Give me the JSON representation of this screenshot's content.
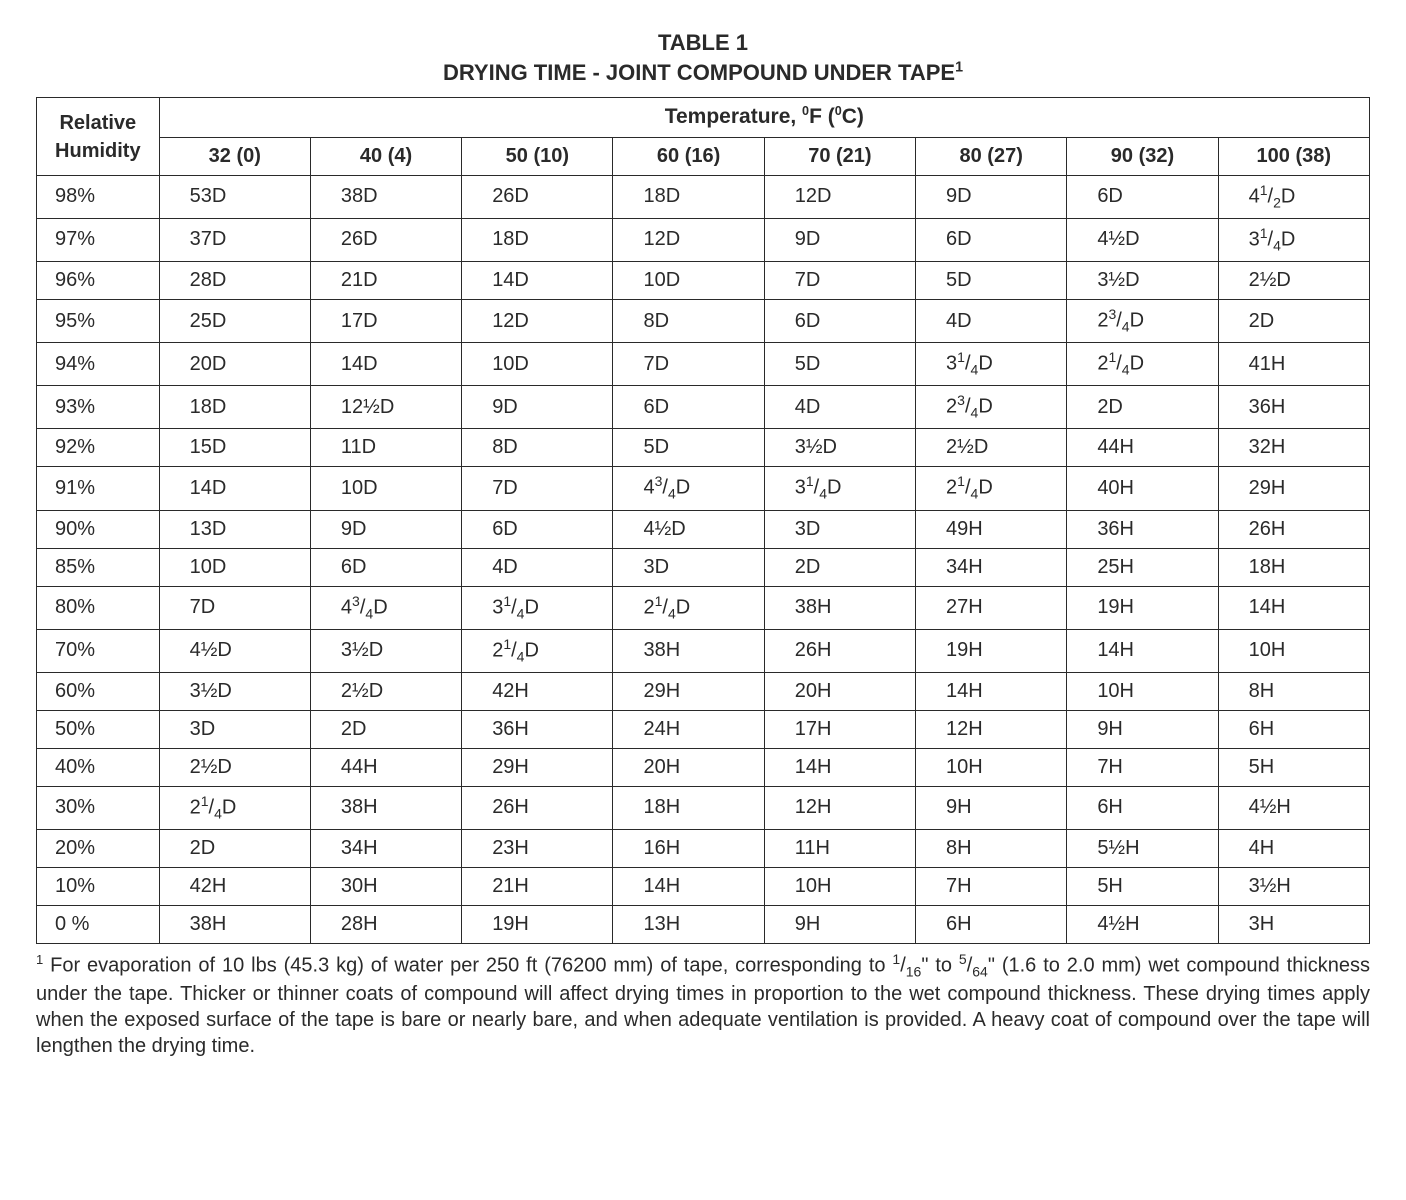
{
  "title": {
    "line1": "TABLE 1",
    "line2_pre": "DRYING TIME - JOINT COMPOUND UNDER TAPE",
    "line2_sup": "1"
  },
  "header": {
    "rh_label_1": "Relative",
    "rh_label_2": "Humidity",
    "temp_label_pre": "Temperature, ",
    "temp_label_sup1": "0",
    "temp_label_mid": "F (",
    "temp_label_sup2": "0",
    "temp_label_post": "C)",
    "temp_cols": [
      "32 (0)",
      "40 (4)",
      "50 (10)",
      "60 (16)",
      "70 (21)",
      "80 (27)",
      "90 (32)",
      "100 (38)"
    ]
  },
  "rows": [
    {
      "rh": "98%",
      "cells": [
        {
          "t": "53D"
        },
        {
          "t": "38D"
        },
        {
          "t": "26D"
        },
        {
          "t": "18D"
        },
        {
          "t": "12D"
        },
        {
          "t": "9D"
        },
        {
          "t": "6D"
        },
        {
          "p": "4",
          "n": "1",
          "d": "2",
          "s": "D"
        }
      ]
    },
    {
      "rh": "97%",
      "cells": [
        {
          "t": "37D"
        },
        {
          "t": "26D"
        },
        {
          "t": "18D"
        },
        {
          "t": "12D"
        },
        {
          "t": "9D"
        },
        {
          "t": "6D"
        },
        {
          "t": "4½D"
        },
        {
          "p": "3",
          "n": "1",
          "d": "4",
          "s": "D"
        }
      ]
    },
    {
      "rh": "96%",
      "cells": [
        {
          "t": "28D"
        },
        {
          "t": "21D"
        },
        {
          "t": "14D"
        },
        {
          "t": "10D"
        },
        {
          "t": "7D"
        },
        {
          "t": "5D"
        },
        {
          "t": "3½D"
        },
        {
          "t": "2½D"
        }
      ]
    },
    {
      "rh": "95%",
      "cells": [
        {
          "t": "25D"
        },
        {
          "t": "17D"
        },
        {
          "t": "12D"
        },
        {
          "t": "8D"
        },
        {
          "t": "6D"
        },
        {
          "t": "4D"
        },
        {
          "p": "2",
          "n": "3",
          "d": "4",
          "s": "D"
        },
        {
          "t": "2D"
        }
      ]
    },
    {
      "rh": "94%",
      "cells": [
        {
          "t": "20D"
        },
        {
          "t": "14D"
        },
        {
          "t": "10D"
        },
        {
          "t": "7D"
        },
        {
          "t": "5D"
        },
        {
          "p": "3",
          "n": "1",
          "d": "4",
          "s": "D"
        },
        {
          "p": "2",
          "n": "1",
          "d": "4",
          "s": "D"
        },
        {
          "t": "41H"
        }
      ]
    },
    {
      "rh": "93%",
      "cells": [
        {
          "t": "18D"
        },
        {
          "t": "12½D"
        },
        {
          "t": "9D"
        },
        {
          "t": "6D"
        },
        {
          "t": "4D"
        },
        {
          "p": "2",
          "n": "3",
          "d": "4",
          "s": "D"
        },
        {
          "t": "2D"
        },
        {
          "t": "36H"
        }
      ]
    },
    {
      "rh": "92%",
      "cells": [
        {
          "t": "15D"
        },
        {
          "t": "11D"
        },
        {
          "t": "8D"
        },
        {
          "t": "5D"
        },
        {
          "t": "3½D"
        },
        {
          "t": "2½D"
        },
        {
          "t": "44H"
        },
        {
          "t": "32H"
        }
      ]
    },
    {
      "rh": "91%",
      "cells": [
        {
          "t": "14D"
        },
        {
          "t": "10D"
        },
        {
          "t": "7D"
        },
        {
          "p": "4",
          "n": "3",
          "d": "4",
          "s": "D"
        },
        {
          "p": "3",
          "n": "1",
          "d": "4",
          "s": "D"
        },
        {
          "p": "2",
          "n": "1",
          "d": "4",
          "s": "D"
        },
        {
          "t": "40H"
        },
        {
          "t": "29H"
        }
      ]
    },
    {
      "rh": "90%",
      "cells": [
        {
          "t": "13D"
        },
        {
          "t": "9D"
        },
        {
          "t": "6D"
        },
        {
          "t": "4½D"
        },
        {
          "t": "3D"
        },
        {
          "t": "49H"
        },
        {
          "t": "36H"
        },
        {
          "t": "26H"
        }
      ]
    },
    {
      "rh": "85%",
      "cells": [
        {
          "t": "10D"
        },
        {
          "t": "6D"
        },
        {
          "t": "4D"
        },
        {
          "t": "3D"
        },
        {
          "t": "2D"
        },
        {
          "t": "34H"
        },
        {
          "t": "25H"
        },
        {
          "t": "18H"
        }
      ]
    },
    {
      "rh": "80%",
      "cells": [
        {
          "t": "7D"
        },
        {
          "p": "4",
          "n": "3",
          "d": "4",
          "s": "D"
        },
        {
          "p": "3",
          "n": "1",
          "d": "4",
          "s": "D"
        },
        {
          "p": "2",
          "n": "1",
          "d": "4",
          "s": "D"
        },
        {
          "t": "38H"
        },
        {
          "t": "27H"
        },
        {
          "t": "19H"
        },
        {
          "t": "14H"
        }
      ]
    },
    {
      "rh": "70%",
      "cells": [
        {
          "t": "4½D"
        },
        {
          "t": "3½D"
        },
        {
          "p": "2",
          "n": "1",
          "d": "4",
          "s": "D"
        },
        {
          "t": "38H"
        },
        {
          "t": "26H"
        },
        {
          "t": "19H"
        },
        {
          "t": "14H"
        },
        {
          "t": "10H"
        }
      ]
    },
    {
      "rh": "60%",
      "cells": [
        {
          "t": "3½D"
        },
        {
          "t": "2½D"
        },
        {
          "t": "42H"
        },
        {
          "t": "29H"
        },
        {
          "t": "20H"
        },
        {
          "t": "14H"
        },
        {
          "t": "10H"
        },
        {
          "t": "8H"
        }
      ]
    },
    {
      "rh": "50%",
      "cells": [
        {
          "t": "3D"
        },
        {
          "t": "2D"
        },
        {
          "t": "36H"
        },
        {
          "t": "24H"
        },
        {
          "t": "17H"
        },
        {
          "t": "12H"
        },
        {
          "t": "9H"
        },
        {
          "t": "6H"
        }
      ]
    },
    {
      "rh": "40%",
      "cells": [
        {
          "t": "2½D"
        },
        {
          "t": "44H"
        },
        {
          "t": "29H"
        },
        {
          "t": "20H"
        },
        {
          "t": "14H"
        },
        {
          "t": "10H"
        },
        {
          "t": "7H"
        },
        {
          "t": "5H"
        }
      ]
    },
    {
      "rh": "30%",
      "cells": [
        {
          "p": "2",
          "n": "1",
          "d": "4",
          "s": "D"
        },
        {
          "t": "38H"
        },
        {
          "t": "26H"
        },
        {
          "t": "18H"
        },
        {
          "t": "12H"
        },
        {
          "t": "9H"
        },
        {
          "t": "6H"
        },
        {
          "t": "4½H"
        }
      ]
    },
    {
      "rh": "20%",
      "cells": [
        {
          "t": "2D"
        },
        {
          "t": "34H"
        },
        {
          "t": "23H"
        },
        {
          "t": "16H"
        },
        {
          "t": "11H"
        },
        {
          "t": "8H"
        },
        {
          "t": "5½H"
        },
        {
          "t": "4H"
        }
      ]
    },
    {
      "rh": "10%",
      "cells": [
        {
          "t": "42H"
        },
        {
          "t": "30H"
        },
        {
          "t": "21H"
        },
        {
          "t": "14H"
        },
        {
          "t": "10H"
        },
        {
          "t": "7H"
        },
        {
          "t": "5H"
        },
        {
          "t": "3½H"
        }
      ]
    },
    {
      "rh": "0 %",
      "cells": [
        {
          "t": "38H"
        },
        {
          "t": "28H"
        },
        {
          "t": "19H"
        },
        {
          "t": "13H"
        },
        {
          "t": "9H"
        },
        {
          "t": "6H"
        },
        {
          "t": "4½H"
        },
        {
          "t": "3H"
        }
      ]
    }
  ],
  "footnote": {
    "sup": "1",
    "seg1": " For evaporation of 10 lbs (45.3 kg) of water per 250 ft (76200 mm) of tape, corresponding to ",
    "f1n": "1",
    "f1d": "16",
    "seg2": "\" to ",
    "f2n": "5",
    "f2d": "64",
    "seg3": "\" (1.6 to 2.0 mm) wet compound thickness under the tape. Thicker or thinner coats of compound will affect drying times in proportion to the wet compound thickness.  These drying times apply  when the exposed surface of the tape is bare or nearly bare, and when adequate ventilation is provided.  A heavy coat of compound over the tape will lengthen the drying time."
  }
}
